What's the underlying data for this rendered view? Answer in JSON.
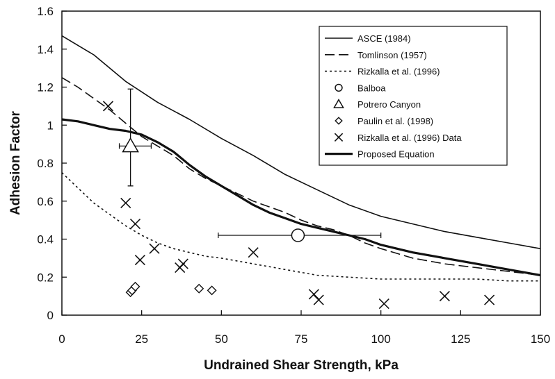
{
  "chart_data": {
    "type": "scatter",
    "title": "",
    "xlabel": "Undrained Shear Strength, kPa",
    "ylabel": "Adhesion Factor",
    "xlim": [
      0,
      150
    ],
    "ylim": [
      0,
      1.6
    ],
    "xticks": [
      0,
      25,
      50,
      75,
      100,
      125,
      150
    ],
    "yticks": [
      0,
      0.2,
      0.4,
      0.6,
      0.8,
      1,
      1.2,
      1.4,
      1.6
    ],
    "xtick_labels": [
      "0",
      "25",
      "50",
      "75",
      "100",
      "125",
      "150"
    ],
    "ytick_labels": [
      "0",
      "0.2",
      "0.4",
      "0.6",
      "0.8",
      "1",
      "1.2",
      "1.4",
      "1.6"
    ],
    "grid": false,
    "legend_position": "top-right",
    "lines": [
      {
        "name": "ASCE (1984)",
        "style": "solid-thin",
        "x": [
          0,
          10,
          20,
          30,
          40,
          50,
          60,
          70,
          80,
          90,
          100,
          110,
          120,
          130,
          140,
          150
        ],
        "y": [
          1.47,
          1.37,
          1.23,
          1.12,
          1.03,
          0.93,
          0.84,
          0.74,
          0.66,
          0.58,
          0.52,
          0.48,
          0.44,
          0.41,
          0.38,
          0.35
        ]
      },
      {
        "name": "Tomlinson (1957)",
        "style": "dashed",
        "x": [
          0,
          5,
          10,
          15,
          20,
          25,
          30,
          35,
          40,
          45,
          50,
          55,
          60,
          65,
          70,
          75,
          80,
          85,
          90,
          95,
          100,
          110,
          120,
          130,
          140,
          150
        ],
        "y": [
          1.25,
          1.2,
          1.14,
          1.08,
          1.01,
          0.94,
          0.89,
          0.84,
          0.77,
          0.72,
          0.68,
          0.64,
          0.6,
          0.57,
          0.54,
          0.5,
          0.47,
          0.45,
          0.42,
          0.38,
          0.35,
          0.3,
          0.27,
          0.25,
          0.23,
          0.21
        ]
      },
      {
        "name": "Rizkalla et al. (1996)",
        "style": "dotted",
        "x": [
          0,
          5,
          10,
          15,
          20,
          25,
          30,
          35,
          40,
          45,
          50,
          60,
          70,
          80,
          90,
          100,
          110,
          120,
          130,
          140,
          150
        ],
        "y": [
          0.75,
          0.67,
          0.59,
          0.53,
          0.47,
          0.42,
          0.38,
          0.35,
          0.33,
          0.31,
          0.3,
          0.27,
          0.24,
          0.21,
          0.2,
          0.19,
          0.19,
          0.19,
          0.19,
          0.18,
          0.18
        ]
      },
      {
        "name": "Proposed Equation",
        "style": "solid-thick",
        "x": [
          0,
          5,
          10,
          15,
          20,
          25,
          30,
          35,
          40,
          45,
          50,
          55,
          60,
          65,
          70,
          75,
          80,
          85,
          90,
          95,
          100,
          110,
          120,
          130,
          140,
          150
        ],
        "y": [
          1.03,
          1.02,
          1.0,
          0.98,
          0.97,
          0.95,
          0.91,
          0.86,
          0.79,
          0.73,
          0.68,
          0.63,
          0.58,
          0.54,
          0.51,
          0.48,
          0.46,
          0.44,
          0.42,
          0.4,
          0.37,
          0.33,
          0.3,
          0.27,
          0.24,
          0.21
        ]
      }
    ],
    "points": [
      {
        "name": "Balboa",
        "marker": "circle",
        "data": [
          {
            "x": 74,
            "y": 0.42,
            "xerr": [
              49,
              100
            ]
          }
        ]
      },
      {
        "name": "Potrero Canyon",
        "marker": "triangle",
        "data": [
          {
            "x": 21.5,
            "y": 0.89,
            "xerr": [
              18,
              28
            ],
            "yerr": [
              0.68,
              1.19
            ]
          }
        ]
      },
      {
        "name": "Paulin et al. (1998)",
        "marker": "diamond",
        "data": [
          {
            "x": 21.5,
            "y": 0.12
          },
          {
            "x": 22,
            "y": 0.13
          },
          {
            "x": 23,
            "y": 0.15
          },
          {
            "x": 43,
            "y": 0.14
          },
          {
            "x": 47,
            "y": 0.13
          }
        ]
      },
      {
        "name": "Rizkalla et al. (1996) Data",
        "marker": "x",
        "data": [
          {
            "x": 14.5,
            "y": 1.1
          },
          {
            "x": 20,
            "y": 0.59
          },
          {
            "x": 23,
            "y": 0.48
          },
          {
            "x": 24.5,
            "y": 0.29
          },
          {
            "x": 29,
            "y": 0.35
          },
          {
            "x": 37,
            "y": 0.25
          },
          {
            "x": 38,
            "y": 0.27
          },
          {
            "x": 60,
            "y": 0.33
          },
          {
            "x": 79,
            "y": 0.11
          },
          {
            "x": 80.5,
            "y": 0.08
          },
          {
            "x": 101,
            "y": 0.06
          },
          {
            "x": 120,
            "y": 0.1
          },
          {
            "x": 134,
            "y": 0.08
          }
        ]
      }
    ],
    "legend": [
      {
        "label": "ASCE (1984)",
        "symbol": "solid-thin"
      },
      {
        "label": "Tomlinson (1957)",
        "symbol": "dashed"
      },
      {
        "label": "Rizkalla et al. (1996)",
        "symbol": "dotted"
      },
      {
        "label": "Balboa",
        "symbol": "circle"
      },
      {
        "label": "Potrero Canyon",
        "symbol": "triangle"
      },
      {
        "label": "Paulin et al. (1998)",
        "symbol": "diamond"
      },
      {
        "label": "Rizkalla et al. (1996) Data",
        "symbol": "x"
      },
      {
        "label": "Proposed Equation",
        "symbol": "solid-thick"
      }
    ],
    "colors": {
      "ink": "#111111",
      "background": "#ffffff"
    }
  }
}
